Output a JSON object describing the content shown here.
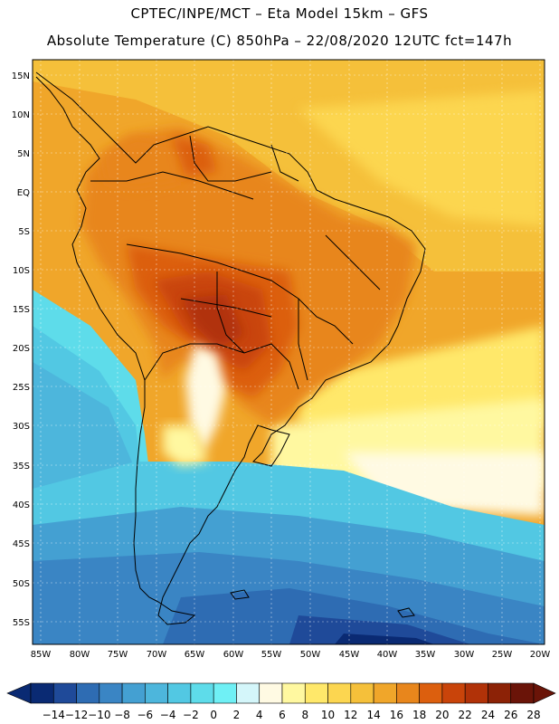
{
  "header": {
    "title_line1": "CPTEC/INPE/MCT –  Eta Model 15km – GFS",
    "title_line2": "Absolute Temperature (C) 850hPa – 22/08/2020 12UTC fct=147h"
  },
  "axes": {
    "lat_labels": [
      "15N",
      "10N",
      "5N",
      "EQ",
      "5S",
      "10S",
      "15S",
      "20S",
      "25S",
      "30S",
      "35S",
      "40S",
      "45S",
      "50S",
      "55S"
    ],
    "lon_labels": [
      "85W",
      "80W",
      "75W",
      "70W",
      "65W",
      "60W",
      "55W",
      "50W",
      "45W",
      "40W",
      "35W",
      "30W",
      "25W",
      "20W"
    ]
  },
  "colorbar": {
    "ticks": [
      "-14",
      "-12",
      "-10",
      "-8",
      "-6",
      "-4",
      "-2",
      "0",
      "2",
      "4",
      "6",
      "8",
      "10",
      "12",
      "14",
      "16",
      "18",
      "20",
      "22",
      "24",
      "26",
      "28"
    ],
    "colors": [
      "#0a2a73",
      "#1f4a99",
      "#2e6cb3",
      "#3a85c4",
      "#44a0d2",
      "#4db6dc",
      "#52c8e3",
      "#5edcea",
      "#6ff0f5",
      "#d4f6fa",
      "#fffae3",
      "#fff8a0",
      "#ffe86a",
      "#fcd650",
      "#f5c03a",
      "#f0a62a",
      "#e8861c",
      "#dc5f0e",
      "#c9440a",
      "#b13208",
      "#8c2206",
      "#6a1408"
    ]
  }
}
